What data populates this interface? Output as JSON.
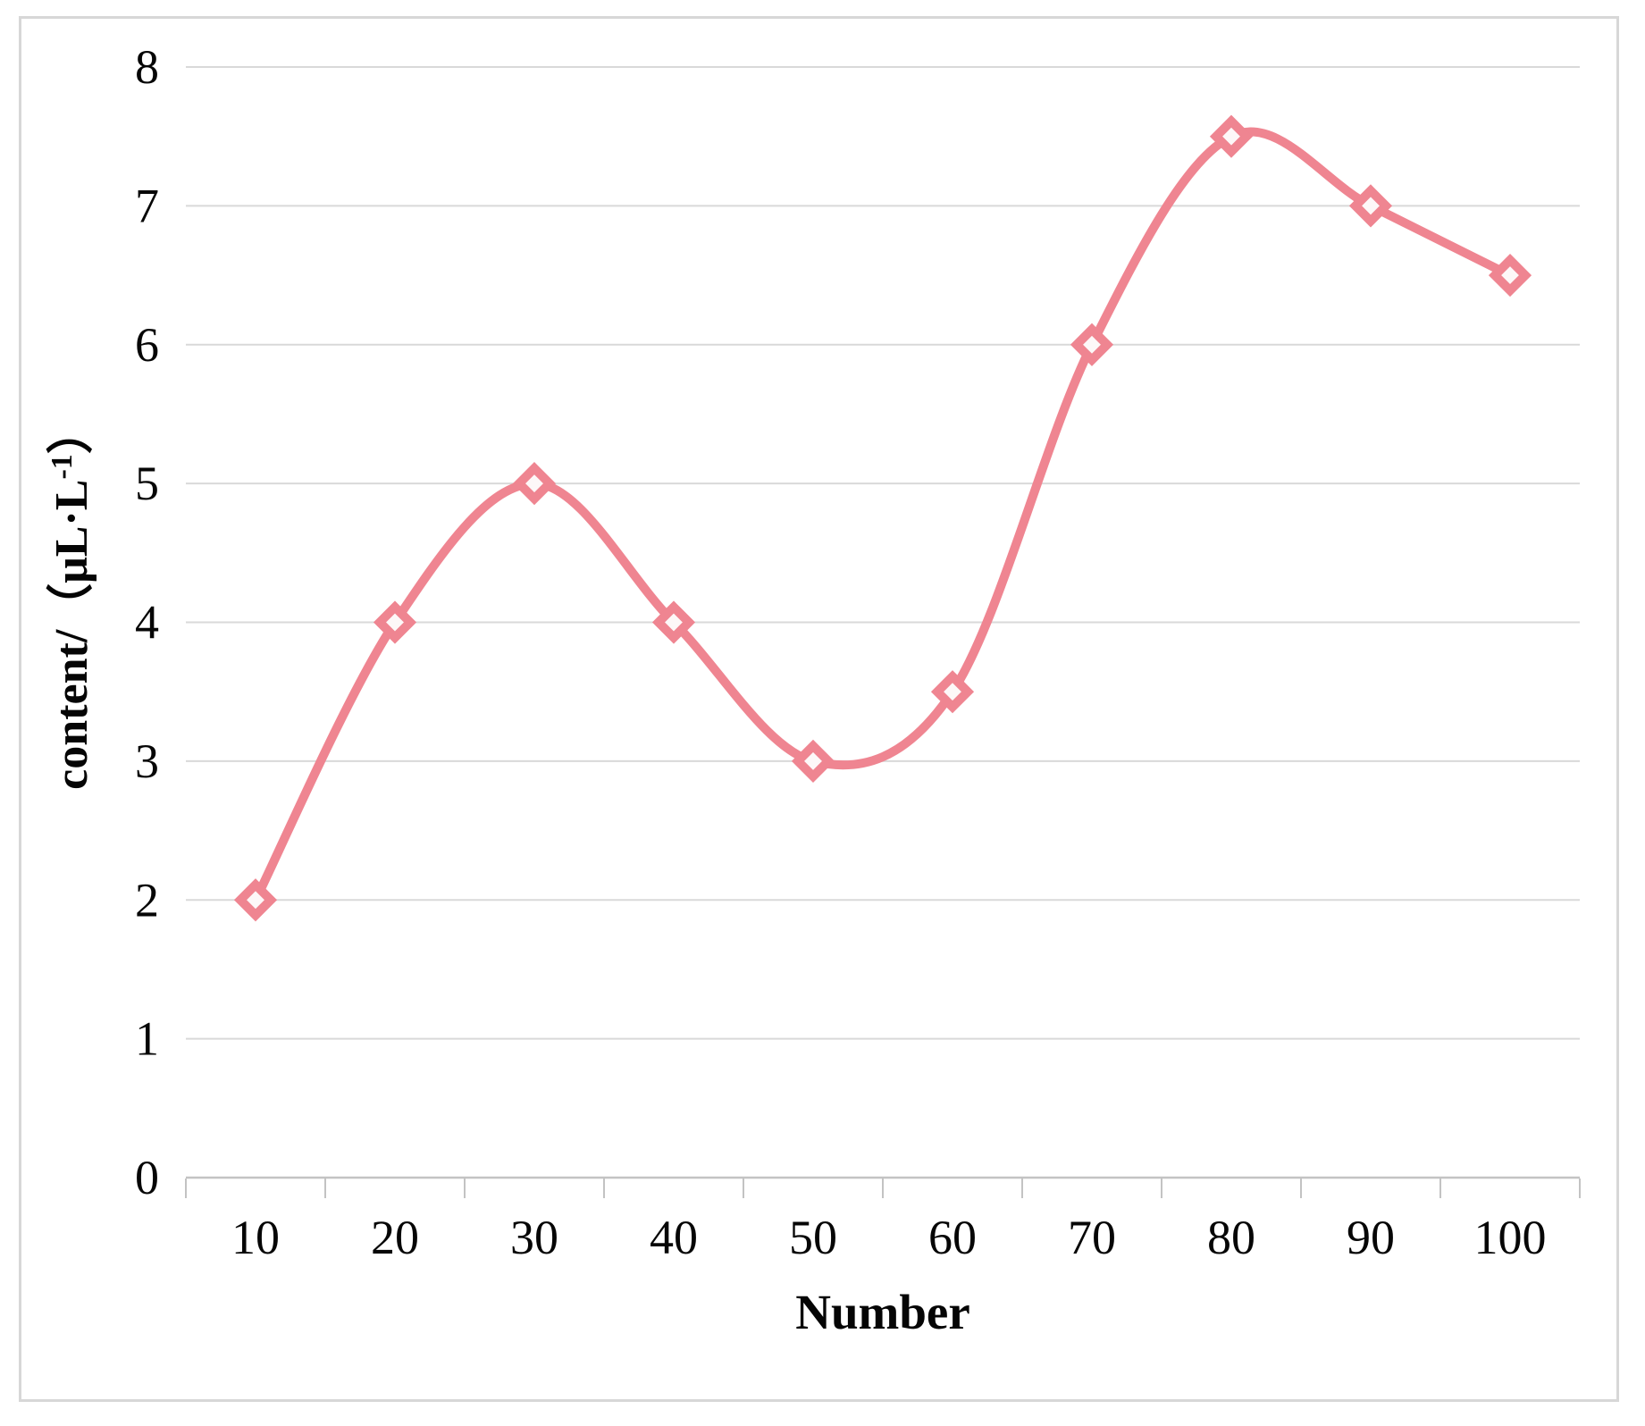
{
  "figure": {
    "background_color": "#ffffff",
    "frame_color": "#d7d7d7"
  },
  "chart_data": {
    "type": "line",
    "title": "",
    "xlabel": "Number",
    "ylabel": "content/（μL·L⁻¹）",
    "ylabel_prefix": "content/（μL·L",
    "ylabel_sup": "-1",
    "ylabel_suffix": "）",
    "categories": [
      10,
      20,
      30,
      40,
      50,
      60,
      70,
      80,
      90,
      100
    ],
    "values": [
      2,
      4,
      5,
      4,
      3,
      3.5,
      6,
      7.5,
      7,
      6.5
    ],
    "ylim": [
      0,
      8
    ],
    "yticks": [
      0,
      1,
      2,
      3,
      4,
      5,
      6,
      7,
      8
    ],
    "grid": "horizontal",
    "legend": "none",
    "line_style": "smooth",
    "marker": "open-diamond",
    "colors": {
      "line": "#ef8591",
      "marker_fill": "#fdf8f8",
      "gridline": "#d9d9d9",
      "axis": "#c3c3c3",
      "text": "#060606"
    }
  }
}
